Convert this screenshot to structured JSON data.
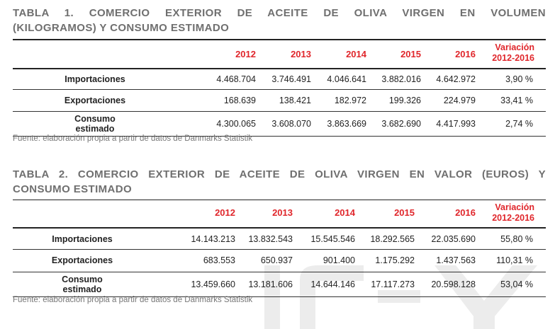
{
  "tables": [
    {
      "title_line1": "TABLA 1. COMERCIO EXTERIOR DE ACEITE DE OLIVA VIRGEN EN VOLUMEN",
      "title_line2": "(KILOGRAMOS) Y CONSUMO ESTIMADO",
      "years": [
        "2012",
        "2013",
        "2014",
        "2015",
        "2016"
      ],
      "variation_label_1": "Variación",
      "variation_label_2": "2012-2016",
      "rows": [
        {
          "label_1": "Importaciones",
          "label_2": "",
          "values": [
            "4.468.704",
            "3.746.491",
            "4.046.641",
            "3.882.016",
            "4.642.972"
          ],
          "variation": "3,90 %"
        },
        {
          "label_1": "Exportaciones",
          "label_2": "",
          "values": [
            "168.639",
            "138.421",
            "182.972",
            "199.326",
            "224.979"
          ],
          "variation": "33,41 %"
        },
        {
          "label_1": "Consumo",
          "label_2": "estimado",
          "values": [
            "4.300.065",
            "3.608.070",
            "3.863.669",
            "3.682.690",
            "4.417.993"
          ],
          "variation": "2,74 %"
        }
      ],
      "source": "Fuente: elaboración propia a partir de datos de Danmarks Statistik"
    },
    {
      "title_line1": "TABLA 2. COMERCIO EXTERIOR DE ACEITE DE OLIVA VIRGEN EN VALOR (EUROS) Y",
      "title_line2": "CONSUMO ESTIMADO",
      "years": [
        "2012",
        "2013",
        "2014",
        "2015",
        "2016"
      ],
      "variation_label_1": "Variación",
      "variation_label_2": "2012-2016",
      "rows": [
        {
          "label_1": "Importaciones",
          "label_2": "",
          "values": [
            "14.143.213",
            "13.832.543",
            "15.545.546",
            "18.292.565",
            "22.035.690"
          ],
          "variation": "55,80 %"
        },
        {
          "label_1": "Exportaciones",
          "label_2": "",
          "values": [
            "683.553",
            "650.937",
            "901.400",
            "1.175.292",
            "1.437.563"
          ],
          "variation": "110,31 %"
        },
        {
          "label_1": "Consumo",
          "label_2": "estimado",
          "values": [
            "13.459.660",
            "13.181.606",
            "14.644.146",
            "17.117.273",
            "20.598.128"
          ],
          "variation": "53,04 %"
        }
      ],
      "source": "Fuente: elaboración propia a partir de datos de Danmarks Statistik"
    }
  ]
}
